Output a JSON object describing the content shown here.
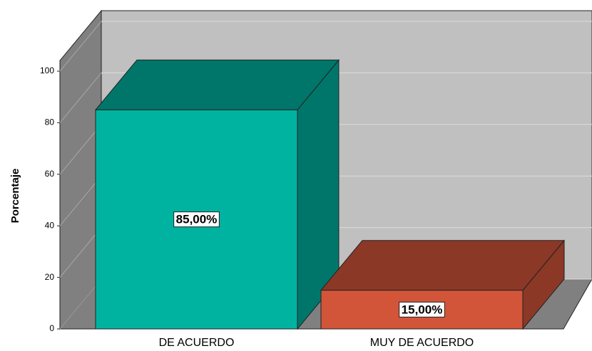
{
  "chart_data": {
    "type": "bar3d",
    "y_label": "Porcentaje",
    "categories": [
      "DE ACUERDO",
      "MUY DE ACUERDO"
    ],
    "values": [
      85,
      15
    ],
    "value_labels": [
      "85,00%",
      "15,00%"
    ],
    "colors": [
      "#00b3a0",
      "#d2553a"
    ],
    "ylim": [
      0,
      100
    ],
    "yticks": [
      0,
      20,
      40,
      60,
      80,
      100
    ],
    "grid": true
  }
}
